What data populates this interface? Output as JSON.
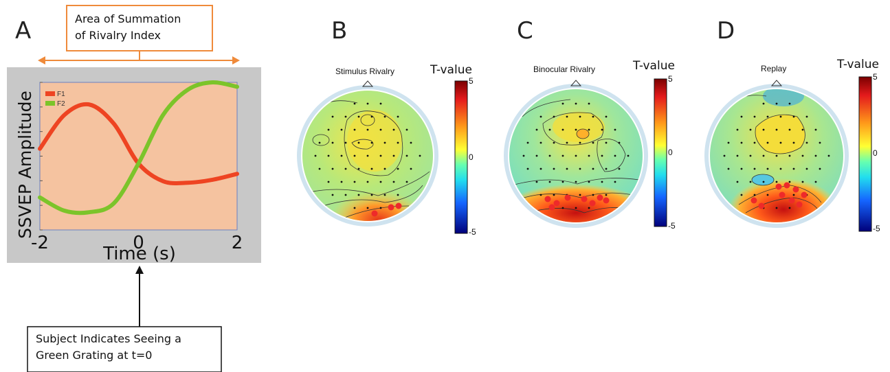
{
  "panels": {
    "a": {
      "letter": "A"
    },
    "b": {
      "letter": "B",
      "title": "Stimulus Rivalry"
    },
    "c": {
      "letter": "C",
      "title": "Binocular Rivalry"
    },
    "d": {
      "letter": "D",
      "title": "Replay"
    }
  },
  "callouts": {
    "top": {
      "line1": "Area of Summation",
      "line2": "of Rivalry Index"
    },
    "bottom": {
      "line1": "Subject Indicates Seeing a",
      "line2": "Green Grating at t=0"
    }
  },
  "colorbar": {
    "title": "T-value",
    "max": "5",
    "mid": "0",
    "min": "-5"
  },
  "chart_data": {
    "type": "line",
    "xlabel": "Time (s)",
    "ylabel": "SSVEP Amplitude",
    "xlim": [
      -2,
      2
    ],
    "x_ticks": [
      "-2",
      "0",
      "2"
    ],
    "series": [
      {
        "name": "F1",
        "color": "#ee4422",
        "x": [
          -2,
          -1.5,
          -1,
          -0.5,
          0,
          0.5,
          1,
          1.5,
          2
        ],
        "y": [
          0.55,
          0.78,
          0.85,
          0.72,
          0.45,
          0.33,
          0.32,
          0.34,
          0.38
        ]
      },
      {
        "name": "F2",
        "color": "#7cc42a",
        "x": [
          -2,
          -1.5,
          -1,
          -0.5,
          0,
          0.5,
          1,
          1.5,
          2
        ],
        "y": [
          0.22,
          0.13,
          0.12,
          0.18,
          0.45,
          0.78,
          0.95,
          1.0,
          0.97
        ]
      }
    ]
  }
}
